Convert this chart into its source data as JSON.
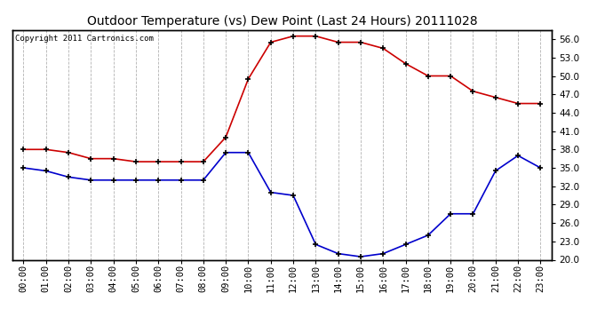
{
  "title": "Outdoor Temperature (vs) Dew Point (Last 24 Hours) 20111028",
  "copyright": "Copyright 2011 Cartronics.com",
  "hours": [
    "00:00",
    "01:00",
    "02:00",
    "03:00",
    "04:00",
    "05:00",
    "06:00",
    "07:00",
    "08:00",
    "09:00",
    "10:00",
    "11:00",
    "12:00",
    "13:00",
    "14:00",
    "15:00",
    "16:00",
    "17:00",
    "18:00",
    "19:00",
    "20:00",
    "21:00",
    "22:00",
    "23:00"
  ],
  "temp": [
    38.0,
    38.0,
    37.5,
    36.5,
    36.5,
    36.0,
    36.0,
    36.0,
    36.0,
    40.0,
    49.5,
    55.5,
    56.5,
    56.5,
    55.5,
    55.5,
    54.5,
    52.0,
    50.0,
    50.0,
    47.5,
    46.5,
    45.5,
    45.5
  ],
  "dewpoint": [
    35.0,
    34.5,
    33.5,
    33.0,
    33.0,
    33.0,
    33.0,
    33.0,
    33.0,
    37.5,
    37.5,
    31.0,
    30.5,
    22.5,
    21.0,
    20.5,
    21.0,
    22.5,
    24.0,
    27.5,
    27.5,
    34.5,
    37.0,
    35.0
  ],
  "temp_color": "#cc0000",
  "dewpoint_color": "#0000cc",
  "ymin": 20.0,
  "ymax": 57.5,
  "yticks": [
    20.0,
    23.0,
    26.0,
    29.0,
    32.0,
    35.0,
    38.0,
    41.0,
    44.0,
    47.0,
    50.0,
    53.0,
    56.0
  ],
  "background_color": "#ffffff",
  "grid_color": "#aaaaaa",
  "title_fontsize": 10,
  "copyright_fontsize": 6.5,
  "border_color": "#000000"
}
